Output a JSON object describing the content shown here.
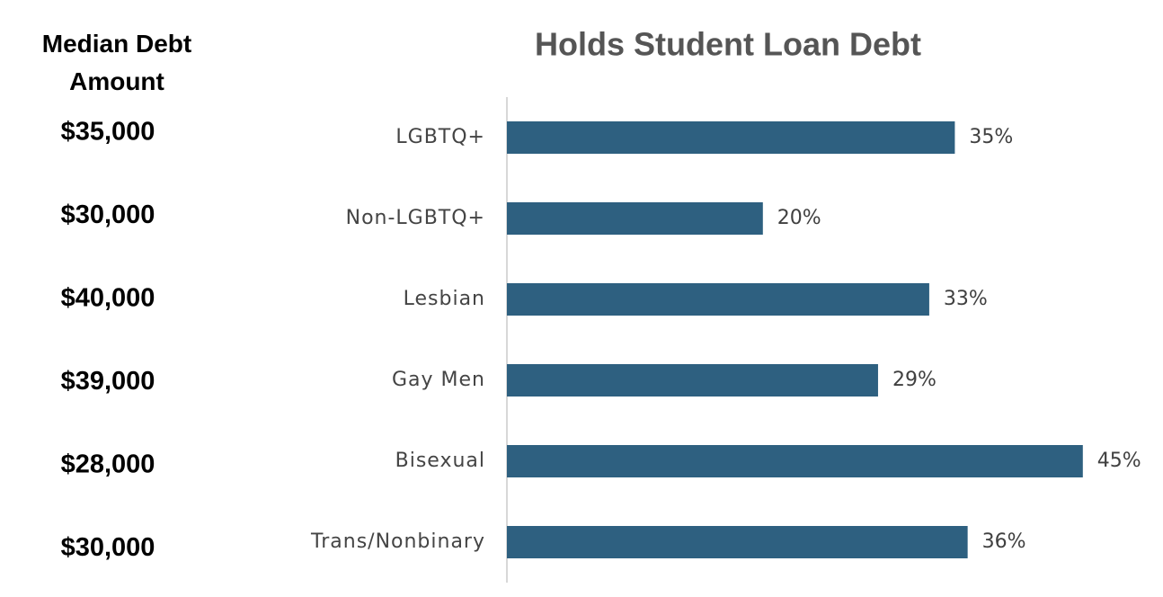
{
  "chart_data": {
    "type": "bar",
    "orientation": "horizontal",
    "title": "Holds Student Loan Debt",
    "categories": [
      "LGBTQ+",
      "Non-LGBTQ+",
      "Lesbian",
      "Gay Men",
      "Bisexual",
      "Trans/Nonbinary"
    ],
    "values": [
      35,
      20,
      33,
      29,
      45,
      36
    ],
    "value_labels": [
      "35%",
      "20%",
      "33%",
      "29%",
      "45%",
      "36%"
    ],
    "color": "#2e6080",
    "xlim": [
      0,
      50
    ]
  },
  "median_debt": {
    "title": "Median Debt Amount",
    "values": [
      35000,
      30000,
      40000,
      39000,
      28000,
      30000
    ],
    "value_labels": [
      "$35,000",
      "$30,000",
      "$40,000",
      "$39,000",
      "$28,000",
      "$30,000"
    ]
  }
}
